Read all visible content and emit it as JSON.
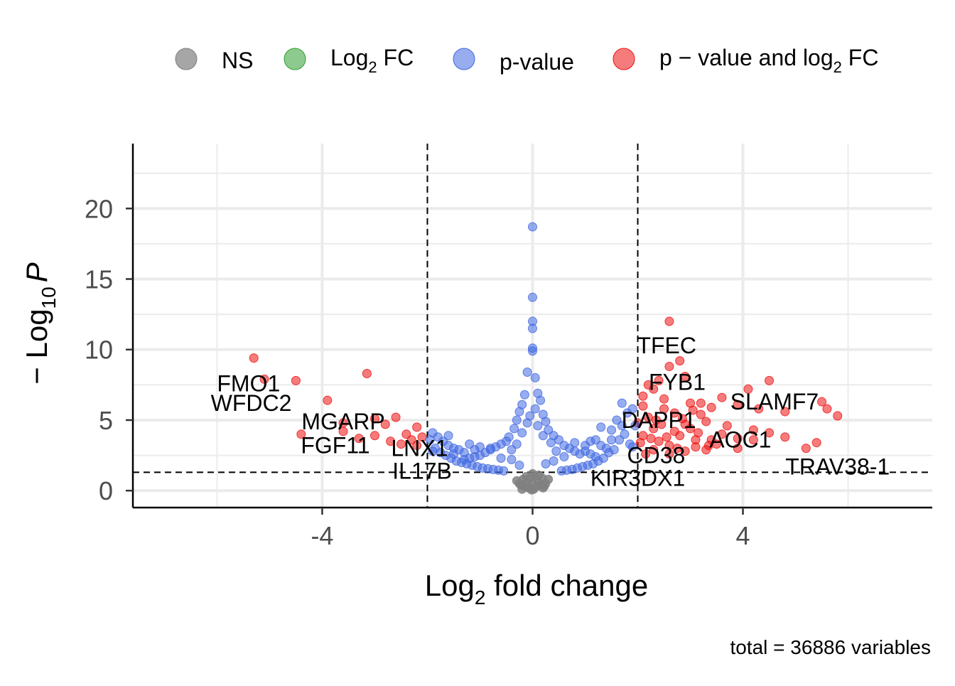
{
  "chart_data": {
    "type": "scatter",
    "subtype": "volcano",
    "xlabel_main": "Log",
    "xlabel_sub": "2",
    "xlabel_rest": " fold change",
    "ylabel_prefix": "− Log",
    "ylabel_sub": "10",
    "ylabel_var": "P",
    "xlim": [
      -7.6,
      7.6
    ],
    "ylim": [
      -1.2,
      24.6
    ],
    "x_ticks": [
      -4,
      0,
      4
    ],
    "x_tick_labels": [
      "-4",
      "0",
      "4"
    ],
    "y_ticks": [
      0,
      5,
      10,
      15,
      20
    ],
    "y_tick_labels": [
      "0",
      "5",
      "10",
      "15",
      "20"
    ],
    "grid": true,
    "fc_cutoff": 2,
    "p_cutoff_log10": 1.3,
    "caption": "total = 36886 variables",
    "legend_position": "top",
    "legend": [
      {
        "key": "ns",
        "label": "NS",
        "color": "#808080"
      },
      {
        "key": "fc",
        "label_main": "Log",
        "label_sub": "2",
        "label_rest": " FC",
        "color": "#2f9e2f"
      },
      {
        "key": "p",
        "label": "p-value",
        "color": "#4169e1"
      },
      {
        "key": "both",
        "label_main": "p − value and log",
        "label_sub": "2",
        "label_rest": " FC",
        "color": "#ee1111"
      }
    ],
    "series": [
      {
        "key": "both",
        "points": [
          [
            -5.3,
            9.4
          ],
          [
            -5.1,
            7.9
          ],
          [
            -4.5,
            7.8
          ],
          [
            -3.9,
            6.4
          ],
          [
            -3.15,
            8.3
          ],
          [
            -2.6,
            5.2
          ],
          [
            -3.6,
            4.8
          ],
          [
            -3.6,
            4.2
          ],
          [
            -4.4,
            4.0
          ],
          [
            -3.0,
            5.1
          ],
          [
            -2.8,
            4.7
          ],
          [
            -2.4,
            4.0
          ],
          [
            -2.2,
            4.5
          ],
          [
            -2.1,
            3.8
          ],
          [
            -2.7,
            3.5
          ],
          [
            -3.3,
            3.7
          ],
          [
            -3.0,
            3.9
          ],
          [
            -2.5,
            3.3
          ],
          [
            -2.2,
            3.2
          ],
          [
            -2.3,
            3.6
          ],
          [
            2.6,
            12.0
          ],
          [
            2.8,
            9.2
          ],
          [
            2.6,
            8.8
          ],
          [
            2.9,
            8.1
          ],
          [
            2.4,
            7.8
          ],
          [
            2.2,
            7.5
          ],
          [
            2.3,
            7.2
          ],
          [
            2.1,
            6.7
          ],
          [
            2.5,
            6.5
          ],
          [
            4.5,
            7.8
          ],
          [
            4.1,
            7.2
          ],
          [
            3.6,
            6.6
          ],
          [
            3.9,
            6.1
          ],
          [
            4.3,
            5.8
          ],
          [
            4.8,
            5.6
          ],
          [
            3.4,
            5.9
          ],
          [
            3.2,
            6.2
          ],
          [
            5.5,
            6.3
          ],
          [
            5.6,
            5.8
          ],
          [
            5.8,
            5.3
          ],
          [
            5.2,
            3.0
          ],
          [
            5.4,
            3.4
          ],
          [
            4.8,
            3.8
          ],
          [
            4.5,
            4.1
          ],
          [
            4.2,
            4.3
          ],
          [
            3.9,
            3.7
          ],
          [
            3.6,
            4.0
          ],
          [
            3.5,
            3.3
          ],
          [
            3.3,
            2.9
          ],
          [
            3.9,
            3.0
          ],
          [
            4.2,
            3.6
          ],
          [
            3.7,
            4.6
          ],
          [
            3.0,
            6.2
          ],
          [
            2.9,
            4.7
          ],
          [
            2.7,
            4.2
          ],
          [
            3.1,
            3.6
          ],
          [
            3.3,
            4.9
          ],
          [
            2.3,
            4.4
          ],
          [
            2.2,
            5.2
          ],
          [
            2.5,
            5.8
          ],
          [
            2.7,
            5.5
          ],
          [
            2.1,
            3.9
          ],
          [
            2.4,
            3.5
          ],
          [
            2.6,
            3.2
          ],
          [
            2.8,
            3.9
          ],
          [
            3.0,
            4.4
          ],
          [
            3.2,
            5.4
          ],
          [
            2.0,
            4.8
          ],
          [
            2.05,
            3.4
          ],
          [
            2.3,
            2.9
          ],
          [
            2.6,
            2.6
          ],
          [
            2.9,
            2.8
          ],
          [
            3.1,
            3.1
          ],
          [
            3.4,
            3.6
          ],
          [
            2.1,
            6.0
          ],
          [
            2.35,
            5.0
          ],
          [
            2.75,
            3.0
          ],
          [
            3.15,
            4.1
          ],
          [
            3.35,
            3.2
          ],
          [
            2.45,
            4.7
          ],
          [
            2.15,
            2.6
          ],
          [
            2.55,
            3.8
          ],
          [
            2.85,
            5.1
          ],
          [
            3.05,
            5.7
          ],
          [
            2.25,
            3.7
          ]
        ]
      },
      {
        "key": "p",
        "points": [
          [
            0,
            18.7
          ],
          [
            0,
            13.7
          ],
          [
            0,
            12.0
          ],
          [
            0,
            11.5
          ],
          [
            0,
            10.1
          ],
          [
            0,
            9.9
          ],
          [
            -0.1,
            8.4
          ],
          [
            0.05,
            8.0
          ],
          [
            -0.15,
            6.8
          ],
          [
            0.1,
            6.9
          ],
          [
            -0.2,
            6.1
          ],
          [
            0.15,
            6.4
          ],
          [
            -0.25,
            5.6
          ],
          [
            0.2,
            5.4
          ],
          [
            -0.3,
            5.0
          ],
          [
            0.25,
            4.9
          ],
          [
            0.3,
            4.3
          ],
          [
            -0.35,
            4.4
          ],
          [
            0.4,
            3.9
          ],
          [
            -0.45,
            3.8
          ],
          [
            0.5,
            3.6
          ],
          [
            -0.5,
            3.5
          ],
          [
            0.6,
            3.2
          ],
          [
            -0.6,
            3.3
          ],
          [
            0.7,
            3.0
          ],
          [
            -0.7,
            3.1
          ],
          [
            0.8,
            2.8
          ],
          [
            -0.8,
            2.9
          ],
          [
            0.9,
            2.6
          ],
          [
            -0.9,
            2.7
          ],
          [
            1.0,
            2.8
          ],
          [
            -1.0,
            2.5
          ],
          [
            1.1,
            3.5
          ],
          [
            -1.1,
            2.4
          ],
          [
            1.2,
            2.4
          ],
          [
            -1.2,
            2.3
          ],
          [
            1.3,
            4.5
          ],
          [
            -1.3,
            2.2
          ],
          [
            1.4,
            3.0
          ],
          [
            -1.4,
            2.9
          ],
          [
            1.5,
            4.3
          ],
          [
            -1.5,
            3.0
          ],
          [
            1.6,
            5.0
          ],
          [
            -1.6,
            3.2
          ],
          [
            1.7,
            6.2
          ],
          [
            -1.7,
            3.5
          ],
          [
            1.8,
            5.5
          ],
          [
            -1.8,
            3.8
          ],
          [
            1.9,
            5.8
          ],
          [
            -1.9,
            4.1
          ],
          [
            1.95,
            4.6
          ],
          [
            -1.95,
            3.6
          ],
          [
            1.85,
            3.3
          ],
          [
            -1.85,
            3.0
          ],
          [
            1.75,
            4.0
          ],
          [
            -1.75,
            2.7
          ],
          [
            1.65,
            3.6
          ],
          [
            -1.65,
            2.5
          ],
          [
            1.55,
            2.9
          ],
          [
            -1.55,
            2.3
          ],
          [
            1.45,
            2.7
          ],
          [
            -1.45,
            2.1
          ],
          [
            1.35,
            2.3
          ],
          [
            -1.35,
            2.0
          ],
          [
            1.25,
            2.1
          ],
          [
            -1.25,
            1.9
          ],
          [
            1.15,
            1.9
          ],
          [
            -1.15,
            1.8
          ],
          [
            1.05,
            1.8
          ],
          [
            -1.05,
            1.7
          ],
          [
            0.95,
            1.7
          ],
          [
            -0.95,
            1.6
          ],
          [
            0.85,
            1.6
          ],
          [
            -0.85,
            1.55
          ],
          [
            0.75,
            1.5
          ],
          [
            -0.75,
            1.5
          ],
          [
            0.65,
            1.45
          ],
          [
            -0.65,
            1.45
          ],
          [
            0.55,
            1.4
          ],
          [
            -0.55,
            1.4
          ],
          [
            -0.1,
            4.8
          ],
          [
            0.1,
            4.6
          ],
          [
            -0.05,
            5.3
          ],
          [
            0.05,
            5.8
          ],
          [
            -0.2,
            4.1
          ],
          [
            0.2,
            3.9
          ],
          [
            -0.3,
            3.3
          ],
          [
            0.35,
            3.4
          ],
          [
            -0.4,
            2.9
          ],
          [
            0.45,
            2.8
          ],
          [
            1.0,
            3.2
          ],
          [
            -1.0,
            3.1
          ],
          [
            0.8,
            3.4
          ],
          [
            -0.8,
            3.0
          ],
          [
            1.2,
            3.6
          ],
          [
            -1.2,
            3.3
          ],
          [
            0.6,
            2.4
          ],
          [
            -0.6,
            2.3
          ],
          [
            0.4,
            2.1
          ],
          [
            -0.4,
            2.2
          ],
          [
            0.25,
            1.9
          ],
          [
            -0.25,
            1.8
          ],
          [
            1.7,
            4.6
          ],
          [
            -1.6,
            3.9
          ],
          [
            1.9,
            3.1
          ],
          [
            -1.9,
            2.8
          ],
          [
            1.5,
            3.6
          ],
          [
            -1.5,
            2.6
          ],
          [
            1.3,
            3.2
          ],
          [
            -1.3,
            2.7
          ],
          [
            1.1,
            2.6
          ],
          [
            -1.1,
            2.9
          ]
        ]
      },
      {
        "key": "ns",
        "points": [
          [
            0,
            1.2
          ],
          [
            0.05,
            1.0
          ],
          [
            -0.05,
            0.9
          ],
          [
            0.1,
            0.7
          ],
          [
            -0.1,
            0.6
          ],
          [
            0.15,
            0.4
          ],
          [
            -0.15,
            0.3
          ],
          [
            0.2,
            0.2
          ],
          [
            -0.2,
            0.1
          ],
          [
            0,
            0.5
          ],
          [
            0.08,
            0.3
          ],
          [
            -0.08,
            0.2
          ],
          [
            0.25,
            0.5
          ],
          [
            -0.25,
            0.5
          ],
          [
            0.3,
            0.8
          ],
          [
            -0.3,
            0.7
          ],
          [
            0.02,
            0.1
          ],
          [
            -0.02,
            0.05
          ],
          [
            0.12,
            1.1
          ],
          [
            -0.12,
            1.0
          ],
          [
            0.18,
            0.9
          ],
          [
            -0.18,
            0.8
          ],
          [
            0.22,
            0.3
          ],
          [
            -0.22,
            0.4
          ]
        ]
      },
      {
        "key": "fc",
        "points": []
      }
    ],
    "annotations": [
      {
        "text": "TFEC",
        "x": 2.55,
        "y": 10.3
      },
      {
        "text": "FYB1",
        "x": 2.75,
        "y": 7.7
      },
      {
        "text": "SLAMF7",
        "x": 4.6,
        "y": 6.3
      },
      {
        "text": "DAPP1",
        "x": 2.4,
        "y": 5.0
      },
      {
        "text": "AOC1",
        "x": 3.95,
        "y": 3.6
      },
      {
        "text": "CD38",
        "x": 2.35,
        "y": 2.5
      },
      {
        "text": "TRAV38-1",
        "x": 5.8,
        "y": 1.7
      },
      {
        "text": "KIR3DX1",
        "x": 2.0,
        "y": 0.9
      },
      {
        "text": "FMO1",
        "x": -5.4,
        "y": 7.6
      },
      {
        "text": "WFDC2",
        "x": -5.35,
        "y": 6.2
      },
      {
        "text": "MGARP",
        "x": -3.6,
        "y": 4.9
      },
      {
        "text": "FGF11",
        "x": -3.75,
        "y": 3.2
      },
      {
        "text": "LNX1",
        "x": -2.15,
        "y": 3.0
      },
      {
        "text": "IL17B",
        "x": -2.1,
        "y": 1.4
      }
    ]
  }
}
